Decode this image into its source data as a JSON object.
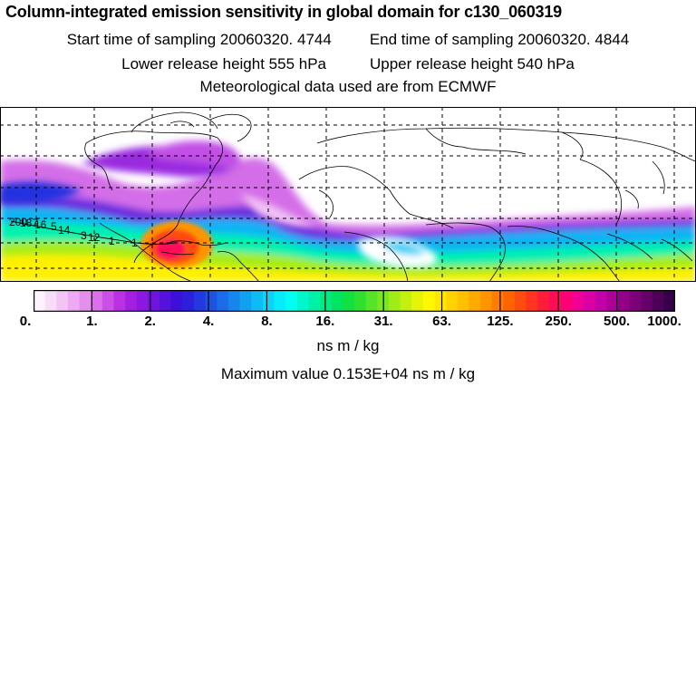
{
  "header": {
    "title": "Column-integrated emission sensitivity in global domain for c130_060319",
    "start_label": "Start time of sampling 20060320.  4744",
    "end_label": "End time of sampling 20060320.  4844",
    "lower_label": "Lower release height  555 hPa",
    "upper_label": "Upper release height  540 hPa",
    "met_label": "Meteorological data used are from ECMWF"
  },
  "map": {
    "type": "global emission sensitivity field",
    "trajectory_labels": [
      "200",
      "187",
      "16",
      "5",
      "14",
      "3",
      "12",
      "1",
      "1"
    ],
    "colors": {
      "background": "#ffffff",
      "coastline": "#000000",
      "grid": "#000000"
    }
  },
  "colorbar": {
    "tick_labels": [
      "0.",
      "1.",
      "2.",
      "4.",
      "8.",
      "16.",
      "31.",
      "63.",
      "125.",
      "250.",
      "500.",
      "1000."
    ],
    "colors": [
      "#fdf2fd",
      "#f8dcf8",
      "#f3c4f5",
      "#edaaf2",
      "#e58eee",
      "#da70ea",
      "#cc4fe6",
      "#bb30e3",
      "#a31fe2",
      "#8a18e0",
      "#6f14de",
      "#5512dc",
      "#3c10da",
      "#2d1fdc",
      "#2438df",
      "#1e52e3",
      "#1a6ce8",
      "#1686ec",
      "#12a0f0",
      "#0ebbf4",
      "#0ad4f8",
      "#06ecfc",
      "#00fff0",
      "#00f7cc",
      "#00f0a8",
      "#00ea84",
      "#00e460",
      "#10e040",
      "#30e030",
      "#55e428",
      "#7ae820",
      "#a0ec18",
      "#c4f010",
      "#e6f408",
      "#fff800",
      "#ffe800",
      "#ffd400",
      "#ffc000",
      "#ffaa00",
      "#ff9400",
      "#ff7c00",
      "#ff6400",
      "#ff4c10",
      "#ff3420",
      "#ff1c38",
      "#ff0c58",
      "#ff0078",
      "#f00094",
      "#dc00a4",
      "#c400a8",
      "#ac0098",
      "#940088",
      "#7c0078",
      "#640068",
      "#4c0058",
      "#360048"
    ],
    "unit": "ns m / kg"
  },
  "footer": {
    "max_label": "Maximum value  0.153E+04 ns m / kg"
  }
}
